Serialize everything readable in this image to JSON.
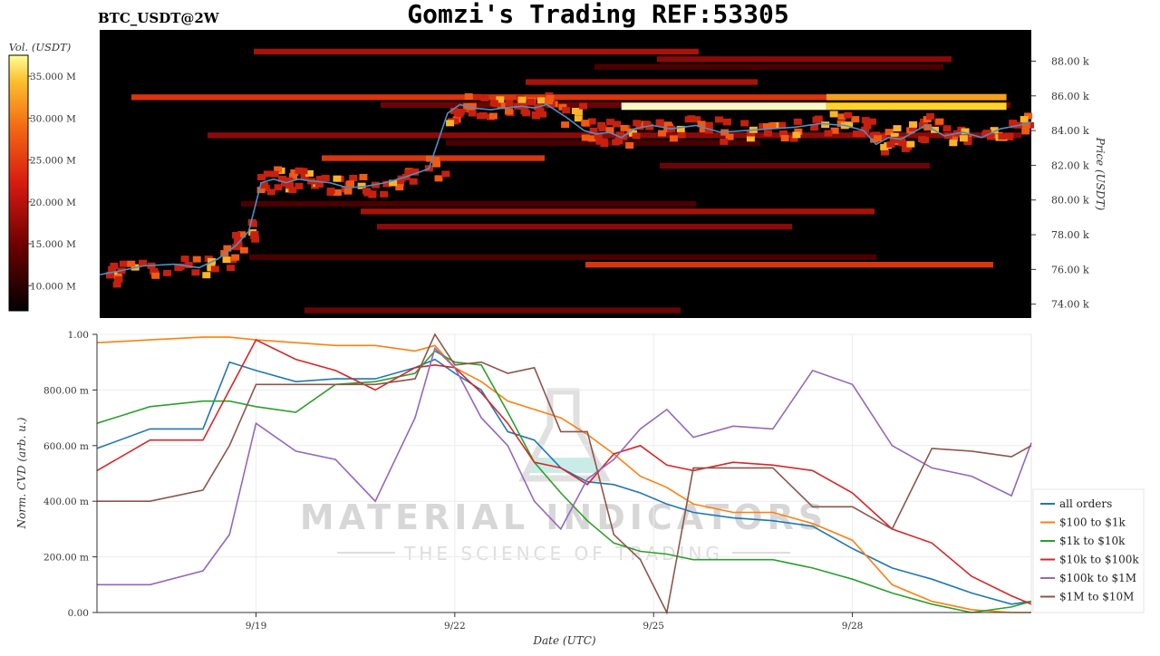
{
  "header": {
    "symbol": "BTC_USDT@2W",
    "title": "Gomzi's Trading REF:53305"
  },
  "watermark": {
    "brand": "MATERIAL INDICATORS",
    "tagline": "THE SCIENCE OF TRADING"
  },
  "colors": {
    "heatmap_bg": "#000000",
    "price_line": "#4a90c8",
    "series": [
      "#1f77b4",
      "#ff7f0e",
      "#2ca02c",
      "#d62728",
      "#9467bd",
      "#8c564b"
    ]
  },
  "chart_data": [
    {
      "type": "heatmap",
      "description_of_axes": "order book liquidity heatmap with price overlay",
      "colorbar": {
        "label": "Vol. (USDT)",
        "ticks": [
          "10.000 M",
          "15.000 M",
          "20.000 M",
          "25.000 M",
          "30.000 M",
          "35.000 M"
        ],
        "tick_values": [
          10,
          15,
          20,
          25,
          30,
          35
        ],
        "range": [
          7,
          37.5
        ]
      },
      "y_axis": {
        "label": "Price (USDT)",
        "ticks": [
          "74.00 k",
          "76.00 k",
          "78.00 k",
          "80.00 k",
          "82.00 k",
          "84.00 k",
          "86.00 k",
          "88.00 k"
        ],
        "tick_values": [
          74,
          76,
          78,
          80,
          82,
          84,
          86,
          88
        ],
        "range": [
          73.2,
          89.8
        ]
      },
      "x_range": [
        0,
        15
      ],
      "price": {
        "x": [
          0,
          0.3,
          0.7,
          1.2,
          1.6,
          1.9,
          2.2,
          2.4,
          2.6,
          2.8,
          3.0,
          3.2,
          3.4,
          3.7,
          4.0,
          4.3,
          4.6,
          4.9,
          5.3,
          5.6,
          5.8,
          6.0,
          6.3,
          6.5,
          6.8,
          7.0,
          7.2,
          7.5,
          7.8,
          8.0,
          8.2,
          8.4,
          8.6,
          8.9,
          9.2,
          9.6,
          10.0,
          10.4,
          10.8,
          11.2,
          11.6,
          12.0,
          12.3,
          12.5,
          12.7,
          12.9,
          13.1,
          13.3,
          13.6,
          13.9,
          14.2,
          14.5,
          14.8,
          15.0
        ],
        "y": [
          75.7,
          75.9,
          76.2,
          76.3,
          76.1,
          76.6,
          77.4,
          78.2,
          81.0,
          81.2,
          81.0,
          81.2,
          81.1,
          81.0,
          80.7,
          80.8,
          81.0,
          81.3,
          81.8,
          85.0,
          85.5,
          85.3,
          85.2,
          85.3,
          85.4,
          85.3,
          85.5,
          84.8,
          84.0,
          83.8,
          83.9,
          83.6,
          84.1,
          84.3,
          84.1,
          84.3,
          83.9,
          84.0,
          84.1,
          84.2,
          84.4,
          84.3,
          84.0,
          83.2,
          83.6,
          83.5,
          83.9,
          84.3,
          83.7,
          83.9,
          83.6,
          84.1,
          84.3,
          84.5
        ],
        "name": ""
      }
    },
    {
      "type": "line",
      "x_label": "Date (UTC)",
      "y_label": "Norm. CVD (arb. u.)",
      "x_ticks": [
        "9/19",
        "9/22",
        "9/25",
        "9/28"
      ],
      "x_tick_values": [
        2.4,
        5.4,
        8.4,
        11.4
      ],
      "x_range": [
        0,
        14.1
      ],
      "y_ticks": [
        "0.00",
        "200.00 m",
        "400.00 m",
        "600.00 m",
        "800.00 m",
        "1.00"
      ],
      "y_tick_values": [
        0,
        0.2,
        0.4,
        0.6,
        0.8,
        1.0
      ],
      "y_range": [
        0,
        1.0
      ],
      "grid": true,
      "legend_position": "right",
      "x": [
        0,
        0.8,
        1.6,
        2.0,
        2.4,
        3.0,
        3.6,
        4.2,
        4.8,
        5.1,
        5.4,
        5.8,
        6.2,
        6.6,
        7.0,
        7.4,
        7.8,
        8.2,
        8.6,
        9.0,
        9.6,
        10.2,
        10.8,
        11.4,
        12.0,
        12.6,
        13.2,
        13.8,
        14.1
      ],
      "series": [
        {
          "name": "all orders",
          "values": [
            0.59,
            0.66,
            0.66,
            0.9,
            0.87,
            0.83,
            0.84,
            0.84,
            0.88,
            0.91,
            0.86,
            0.8,
            0.65,
            0.62,
            0.52,
            0.47,
            0.46,
            0.43,
            0.39,
            0.36,
            0.34,
            0.33,
            0.31,
            0.23,
            0.16,
            0.12,
            0.07,
            0.03,
            0.04
          ]
        },
        {
          "name": "$100 to $1k",
          "values": [
            0.97,
            0.98,
            0.99,
            0.99,
            0.98,
            0.97,
            0.96,
            0.96,
            0.94,
            0.96,
            0.88,
            0.83,
            0.76,
            0.73,
            0.7,
            0.64,
            0.57,
            0.49,
            0.45,
            0.39,
            0.36,
            0.36,
            0.32,
            0.26,
            0.1,
            0.04,
            0.01,
            0.0,
            0.0
          ]
        },
        {
          "name": "$1k to $10k",
          "values": [
            0.68,
            0.74,
            0.76,
            0.76,
            0.74,
            0.72,
            0.82,
            0.83,
            0.86,
            0.94,
            0.9,
            0.89,
            0.72,
            0.54,
            0.43,
            0.33,
            0.25,
            0.22,
            0.21,
            0.19,
            0.19,
            0.19,
            0.16,
            0.12,
            0.07,
            0.03,
            0.0,
            0.02,
            0.04
          ]
        },
        {
          "name": "$10k to $100k",
          "values": [
            0.51,
            0.62,
            0.62,
            0.8,
            0.98,
            0.91,
            0.87,
            0.8,
            0.88,
            0.89,
            0.88,
            0.79,
            0.68,
            0.54,
            0.52,
            0.46,
            0.57,
            0.6,
            0.53,
            0.51,
            0.54,
            0.53,
            0.51,
            0.43,
            0.3,
            0.25,
            0.13,
            0.06,
            0.03
          ]
        },
        {
          "name": "$100k to $1M",
          "values": [
            0.1,
            0.1,
            0.15,
            0.28,
            0.68,
            0.58,
            0.55,
            0.4,
            0.7,
            0.95,
            0.88,
            0.7,
            0.6,
            0.4,
            0.3,
            0.48,
            0.55,
            0.66,
            0.73,
            0.63,
            0.67,
            0.66,
            0.87,
            0.82,
            0.6,
            0.52,
            0.49,
            0.42,
            0.61
          ]
        },
        {
          "name": "$1M to $10M",
          "values": [
            0.4,
            0.4,
            0.44,
            0.6,
            0.82,
            0.82,
            0.82,
            0.82,
            0.84,
            1.0,
            0.89,
            0.9,
            0.86,
            0.88,
            0.65,
            0.65,
            0.28,
            0.19,
            0.0,
            0.52,
            0.52,
            0.52,
            0.38,
            0.38,
            0.3,
            0.59,
            0.58,
            0.56,
            0.6
          ]
        }
      ]
    }
  ]
}
